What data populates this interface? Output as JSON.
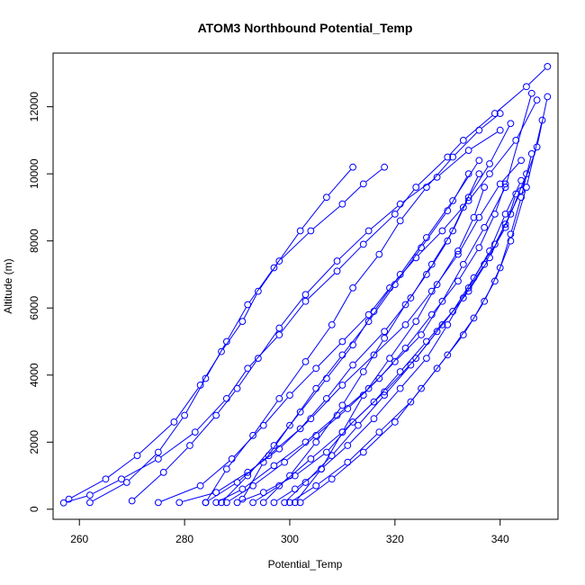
{
  "chart_data": {
    "type": "line",
    "title": "ATOM3 Northbound Potential_Temp",
    "xlabel": "Potential_Temp",
    "ylabel": "Altitude (m)",
    "xlim": [
      255,
      351
    ],
    "ylim": [
      -300,
      13600
    ],
    "xticks": [
      260,
      280,
      300,
      320,
      340
    ],
    "yticks": [
      0,
      2000,
      4000,
      6000,
      8000,
      10000,
      12000
    ],
    "color": "#0000ff",
    "marker": "open-circle",
    "grid": false,
    "series": [
      {
        "x": [
          257,
          262,
          268,
          275,
          282,
          288,
          292,
          298,
          303,
          309,
          314,
          320,
          324,
          330,
          333,
          339,
          345,
          349
        ],
        "y": [
          190,
          420,
          900,
          1500,
          2300,
          3300,
          4200,
          5200,
          6200,
          7100,
          7900,
          8800,
          9600,
          10500,
          11000,
          11800,
          12600,
          13200
        ]
      },
      {
        "x": [
          258,
          265,
          271,
          278,
          283,
          287,
          291,
          294,
          298,
          304,
          310,
          314,
          318
        ],
        "y": [
          300,
          900,
          1600,
          2600,
          3700,
          4700,
          5600,
          6500,
          7400,
          8300,
          9100,
          9700,
          10200
        ]
      },
      {
        "x": [
          262,
          269,
          275,
          280,
          284,
          288,
          292,
          297,
          302,
          307,
          312
        ],
        "y": [
          200,
          800,
          1700,
          2800,
          3900,
          5000,
          6100,
          7200,
          8300,
          9300,
          10200
        ]
      },
      {
        "x": [
          270,
          276,
          281,
          286,
          290,
          294,
          298,
          303,
          309,
          315,
          321,
          328,
          334,
          340
        ],
        "y": [
          250,
          1100,
          1900,
          2800,
          3600,
          4500,
          5400,
          6400,
          7400,
          8300,
          9100,
          9900,
          10700,
          11300
        ]
      },
      {
        "x": [
          275,
          283,
          289,
          295,
          300,
          305,
          310,
          315,
          319,
          324,
          329,
          334,
          338,
          343,
          347
        ],
        "y": [
          200,
          700,
          1500,
          2500,
          3400,
          4200,
          5000,
          5800,
          6600,
          7500,
          8300,
          9200,
          10000,
          11000,
          12200
        ]
      },
      {
        "x": [
          279,
          286,
          292,
          298,
          304,
          310,
          316,
          322,
          327,
          332,
          336,
          340,
          344
        ],
        "y": [
          200,
          500,
          1100,
          1800,
          2700,
          3700,
          4600,
          5500,
          6500,
          7600,
          8700,
          9700,
          10400
        ]
      },
      {
        "x": [
          284,
          290,
          296,
          302,
          307,
          312,
          318,
          323,
          327,
          331,
          334,
          338,
          342
        ],
        "y": [
          200,
          800,
          1600,
          2400,
          3300,
          4300,
          5300,
          6300,
          7300,
          8300,
          9300,
          10300,
          11500
        ]
      },
      {
        "x": [
          286,
          291,
          297,
          303,
          309,
          315,
          320,
          325,
          329,
          333,
          337,
          341,
          346
        ],
        "y": [
          200,
          600,
          1300,
          2000,
          2800,
          3600,
          4400,
          5200,
          6200,
          7300,
          8400,
          9600,
          12400
        ]
      },
      {
        "x": [
          288,
          293,
          299,
          305,
          311,
          317,
          322,
          327,
          332,
          336,
          339,
          341
        ],
        "y": [
          200,
          700,
          1400,
          2200,
          3000,
          3900,
          4800,
          5800,
          6800,
          7800,
          8800,
          9700
        ]
      },
      {
        "x": [
          290,
          295,
          301,
          307,
          312,
          318,
          324,
          329,
          334,
          338,
          341,
          344,
          347,
          349
        ],
        "y": [
          200,
          500,
          1000,
          1700,
          2600,
          3500,
          4500,
          5500,
          6500,
          7500,
          8500,
          9500,
          10800,
          12300
        ]
      },
      {
        "x": [
          293,
          298,
          304,
          310,
          316,
          321,
          326,
          331,
          335,
          339,
          342,
          345
        ],
        "y": [
          200,
          700,
          1500,
          2300,
          3200,
          4100,
          5000,
          5900,
          6900,
          7900,
          8800,
          10000
        ]
      },
      {
        "x": [
          295,
          300,
          305,
          310,
          314,
          318,
          322,
          326,
          330,
          333,
          336
        ],
        "y": [
          200,
          1000,
          2000,
          3100,
          4100,
          5100,
          6100,
          7000,
          8000,
          9000,
          10000
        ]
      },
      {
        "x": [
          297,
          301,
          306,
          311,
          316,
          321,
          326,
          330,
          334,
          338,
          341,
          344
        ],
        "y": [
          200,
          600,
          1200,
          1900,
          2700,
          3600,
          4500,
          5500,
          6600,
          7700,
          8800,
          9800
        ]
      },
      {
        "x": [
          299,
          303,
          308,
          313,
          318,
          323,
          328,
          333,
          337,
          341,
          343
        ],
        "y": [
          200,
          800,
          1600,
          2500,
          3400,
          4300,
          5300,
          6300,
          7300,
          8400,
          9400
        ]
      },
      {
        "x": [
          300,
          305,
          311,
          317,
          323,
          328,
          333,
          337,
          340,
          342,
          344,
          346
        ],
        "y": [
          200,
          700,
          1400,
          2300,
          3200,
          4200,
          5200,
          6200,
          7200,
          8200,
          9300,
          10600
        ]
      },
      {
        "x": [
          301,
          306,
          310,
          314,
          319,
          324,
          328,
          332,
          335,
          337
        ],
        "y": [
          200,
          1200,
          2300,
          3400,
          4500,
          5600,
          6700,
          7700,
          8700,
          9600
        ]
      },
      {
        "x": [
          302,
          308,
          314,
          320,
          325,
          330,
          335,
          339,
          342,
          345,
          348
        ],
        "y": [
          200,
          900,
          1700,
          2600,
          3600,
          4600,
          5700,
          6800,
          8000,
          9600,
          11600
        ]
      },
      {
        "x": [
          284,
          288,
          293,
          298,
          303,
          308,
          312,
          317,
          321,
          326,
          331,
          336,
          340
        ],
        "y": [
          200,
          1200,
          2200,
          3300,
          4400,
          5500,
          6600,
          7600,
          8600,
          9600,
          10500,
          11300,
          11800
        ]
      },
      {
        "x": [
          287,
          292,
          297,
          302,
          307,
          312,
          316,
          321,
          326,
          331,
          336
        ],
        "y": [
          200,
          1000,
          1900,
          2900,
          3900,
          4900,
          5900,
          7000,
          8100,
          9200,
          10400
        ]
      },
      {
        "x": [
          291,
          295,
          300,
          305,
          310,
          315,
          320,
          325,
          330,
          334
        ],
        "y": [
          300,
          1400,
          2500,
          3600,
          4600,
          5600,
          6700,
          7800,
          8900,
          10000
        ]
      }
    ]
  }
}
